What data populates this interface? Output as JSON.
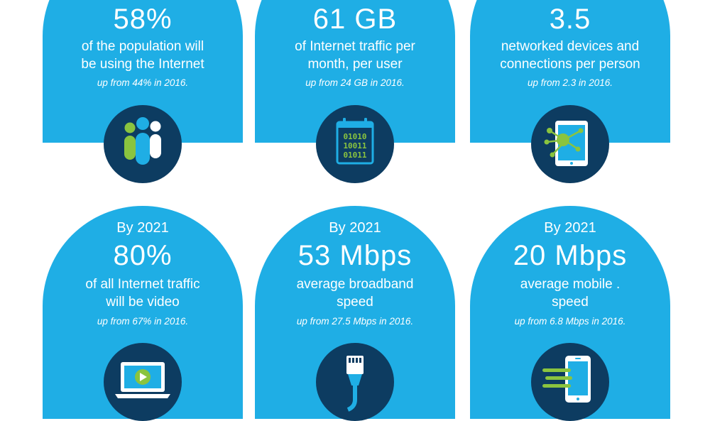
{
  "stats": [
    {
      "big": "58%",
      "desc1": "of the population will",
      "desc2": "be using the Internet",
      "note": "up from 44% in 2016.",
      "icon": "people-icon"
    },
    {
      "big": "61 GB",
      "desc1": "of Internet traffic per",
      "desc2": "month, per user",
      "note": "up from 24 GB in 2016.",
      "icon": "binary-calendar-icon",
      "icon_text": [
        "01010",
        "10011",
        "01011"
      ]
    },
    {
      "big": "3.5",
      "desc1": "networked devices and",
      "desc2": "connections per person",
      "note": "up from 2.3 in 2016.",
      "icon": "tablet-network-icon"
    },
    {
      "year": "By 2021",
      "big": "80%",
      "desc1": "of all Internet traffic",
      "desc2": "will be video",
      "note": "up from 67% in 2016.",
      "icon": "laptop-video-icon"
    },
    {
      "year": "By 2021",
      "big": "53 Mbps",
      "desc1": "average broadband",
      "desc2": "speed",
      "note": "up from 27.5 Mbps in 2016.",
      "icon": "ethernet-cable-icon"
    },
    {
      "year": "By 2021",
      "big": "20 Mbps",
      "desc1": "average mobile .",
      "desc2": "speed",
      "note": "up from 6.8 Mbps in 2016.",
      "icon": "mobile-speed-icon"
    }
  ],
  "colors": {
    "card": "#1faee5",
    "icon_circle": "#0d3c61",
    "accent_green": "#8ac43f",
    "text": "#ffffff"
  }
}
